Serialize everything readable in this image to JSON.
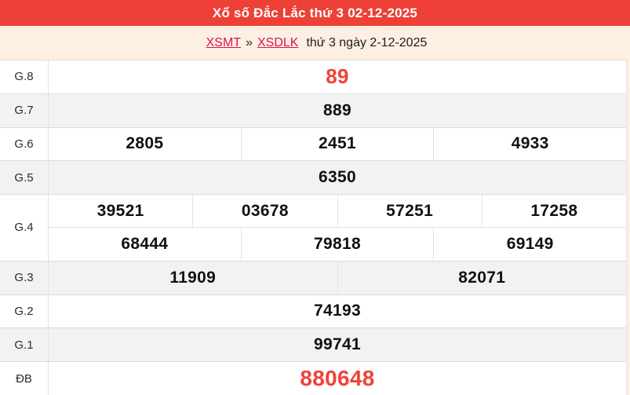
{
  "header": {
    "title": "Xổ số Đắc Lắc thứ 3 02-12-2025"
  },
  "breadcrumb": {
    "link_region": "XSMT",
    "separator": "»",
    "link_province": "XSDLK",
    "date_text": "thứ 3 ngày 2-12-2025"
  },
  "colors": {
    "header_bg": "#ee4036",
    "highlight_number": "#f04238",
    "link": "#d8134f",
    "page_bg": "#fdf0e3",
    "alt_row_bg": "#f2f2f2"
  },
  "table": {
    "rows": [
      {
        "key": "g8",
        "label": "G.8",
        "red": true,
        "big": false,
        "lines": [
          [
            "89"
          ]
        ]
      },
      {
        "key": "g7",
        "label": "G.7",
        "red": false,
        "big": false,
        "lines": [
          [
            "889"
          ]
        ]
      },
      {
        "key": "g6",
        "label": "G.6",
        "red": false,
        "big": false,
        "lines": [
          [
            "2805",
            "2451",
            "4933"
          ]
        ]
      },
      {
        "key": "g5",
        "label": "G.5",
        "red": false,
        "big": false,
        "lines": [
          [
            "6350"
          ]
        ]
      },
      {
        "key": "g4",
        "label": "G.4",
        "red": false,
        "big": false,
        "lines": [
          [
            "39521",
            "03678",
            "57251",
            "17258"
          ],
          [
            "68444",
            "79818",
            "69149"
          ]
        ]
      },
      {
        "key": "g3",
        "label": "G.3",
        "red": false,
        "big": false,
        "lines": [
          [
            "11909",
            "82071"
          ]
        ]
      },
      {
        "key": "g2",
        "label": "G.2",
        "red": false,
        "big": false,
        "lines": [
          [
            "74193"
          ]
        ]
      },
      {
        "key": "g1",
        "label": "G.1",
        "red": false,
        "big": false,
        "lines": [
          [
            "99741"
          ]
        ]
      },
      {
        "key": "db",
        "label": "ĐB",
        "red": true,
        "big": true,
        "lines": [
          [
            "880648"
          ]
        ]
      }
    ]
  }
}
